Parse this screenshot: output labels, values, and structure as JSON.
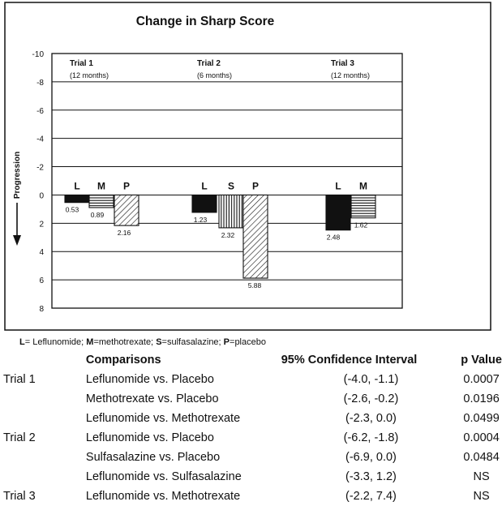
{
  "chart_data": {
    "type": "bar",
    "title": "Change in Sharp Score",
    "ylabel": "Progression",
    "y_axis_inverted": true,
    "ylim": [
      -10,
      8
    ],
    "y_ticks": [
      -10,
      -8,
      -6,
      -4,
      -2,
      0,
      2,
      4,
      6,
      8
    ],
    "grid": true,
    "groups": [
      {
        "name": "Trial 1",
        "duration": "(12 months)",
        "bars": [
          {
            "label": "L",
            "value": 0.53,
            "value_label": "0.53",
            "pattern": "solid"
          },
          {
            "label": "M",
            "value": 0.89,
            "value_label": "0.89",
            "pattern": "horizontal"
          },
          {
            "label": "P",
            "value": 2.16,
            "value_label": "2.16",
            "pattern": "diagonal"
          }
        ]
      },
      {
        "name": "Trial 2",
        "duration": "(6 months)",
        "bars": [
          {
            "label": "L",
            "value": 1.23,
            "value_label": "1.23",
            "pattern": "solid"
          },
          {
            "label": "S",
            "value": 2.32,
            "value_label": "2.32",
            "pattern": "vertical"
          },
          {
            "label": "P",
            "value": 5.88,
            "value_label": "5.88",
            "pattern": "diagonal"
          }
        ]
      },
      {
        "name": "Trial 3",
        "duration": "(12 months)",
        "bars": [
          {
            "label": "L",
            "value": 2.48,
            "value_label": "2.48",
            "pattern": "solid"
          },
          {
            "label": "M",
            "value": 1.62,
            "value_label": "1.62",
            "pattern": "horizontal"
          }
        ]
      }
    ]
  },
  "legend": [
    {
      "key": "L",
      "text": "= Leflunomide; "
    },
    {
      "key": "M",
      "text": "=methotrexate; "
    },
    {
      "key": "S",
      "text": "=sulfasalazine; "
    },
    {
      "key": "P",
      "text": "=placebo"
    }
  ],
  "table": {
    "headers": {
      "comparisons": "Comparisons",
      "ci": "95% Confidence Interval",
      "p": "p Value"
    },
    "rows": [
      {
        "trial": "Trial 1",
        "comparison": "Leflunomide vs. Placebo",
        "ci": "(-4.0, -1.1)",
        "p": "0.0007"
      },
      {
        "trial": "",
        "comparison": "Methotrexate vs. Placebo",
        "ci": "(-2.6, -0.2)",
        "p": "0.0196"
      },
      {
        "trial": "",
        "comparison": "Leflunomide  vs. Methotrexate",
        "ci": "(-2.3, 0.0)",
        "p": "0.0499"
      },
      {
        "trial": "Trial 2",
        "comparison": "Leflunomide vs. Placebo",
        "ci": "(-6.2, -1.8)",
        "p": "0.0004"
      },
      {
        "trial": "",
        "comparison": "Sulfasalazine vs. Placebo",
        "ci": "(-6.9, 0.0)",
        "p": "0.0484"
      },
      {
        "trial": "",
        "comparison": "Leflunomide  vs. Sulfasalazine",
        "ci": "(-3.3, 1.2)",
        "p": "NS"
      },
      {
        "trial": "Trial 3",
        "comparison": "Leflunomide  vs. Methotrexate",
        "ci": "(-2.2, 7.4)",
        "p": "NS"
      }
    ]
  }
}
